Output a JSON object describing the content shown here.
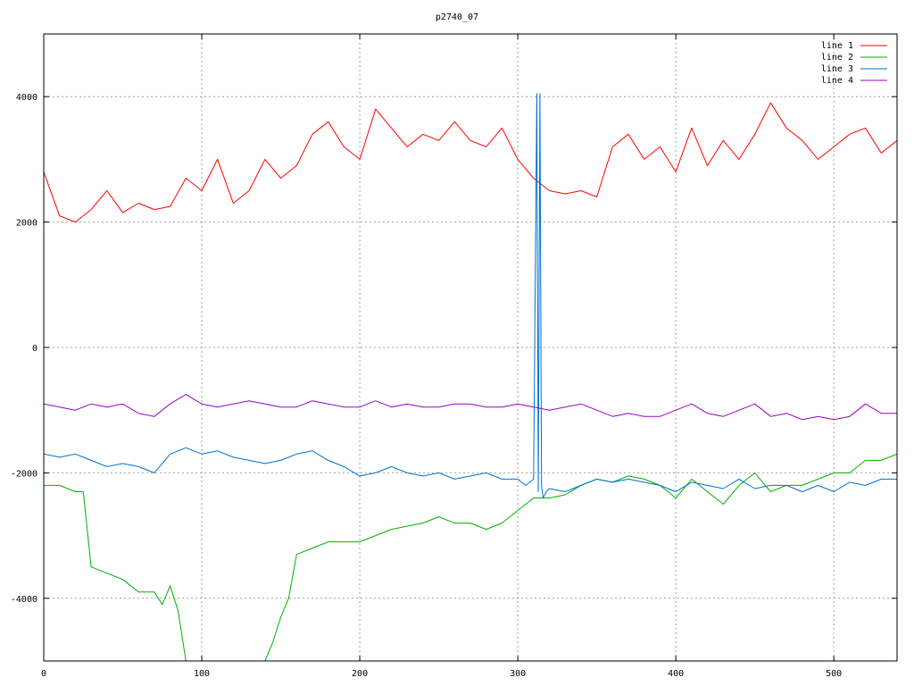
{
  "chart_data": {
    "type": "line",
    "title": "p2740_07",
    "xlabel": "",
    "ylabel": "",
    "xlim": [
      0,
      540
    ],
    "ylim": [
      -5000,
      5000
    ],
    "xticks": [
      0,
      100,
      200,
      300,
      400,
      500
    ],
    "yticks": [
      -4000,
      -2000,
      0,
      2000,
      4000
    ],
    "grid": true,
    "legend_position": "top-right",
    "series": [
      {
        "name": "line 1",
        "color": "#ff0000",
        "x": [
          0,
          10,
          20,
          30,
          40,
          50,
          60,
          70,
          80,
          90,
          100,
          110,
          120,
          130,
          140,
          150,
          160,
          170,
          180,
          190,
          200,
          210,
          220,
          230,
          240,
          250,
          260,
          270,
          280,
          290,
          300,
          310,
          320,
          330,
          340,
          350,
          360,
          370,
          380,
          390,
          400,
          410,
          420,
          430,
          440,
          450,
          460,
          470,
          480,
          490,
          500,
          510,
          520,
          530,
          540
        ],
        "y": [
          2800,
          2100,
          2000,
          2200,
          2500,
          2150,
          2300,
          2200,
          2250,
          2700,
          2500,
          3000,
          2300,
          2500,
          3000,
          2700,
          2900,
          3400,
          3600,
          3200,
          3000,
          3800,
          3500,
          3200,
          3400,
          3300,
          3600,
          3300,
          3200,
          3500,
          3000,
          2700,
          2500,
          2450,
          2500,
          2400,
          3200,
          3400,
          3000,
          3200,
          2800,
          3500,
          2900,
          3300,
          3000,
          3400,
          3900,
          3500,
          3300,
          3000,
          3200,
          3400,
          3500,
          3100,
          3300
        ]
      },
      {
        "name": "line 2",
        "color": "#00b000",
        "x": [
          0,
          10,
          20,
          25,
          30,
          40,
          50,
          60,
          70,
          75,
          80,
          85,
          90,
          95,
          140,
          145,
          150,
          155,
          160,
          170,
          180,
          190,
          200,
          210,
          220,
          230,
          240,
          250,
          260,
          270,
          280,
          290,
          300,
          310,
          320,
          330,
          340,
          350,
          360,
          370,
          380,
          390,
          400,
          410,
          420,
          430,
          440,
          450,
          460,
          470,
          480,
          490,
          500,
          510,
          520,
          530,
          540
        ],
        "y": [
          -2200,
          -2200,
          -2300,
          -2300,
          -3500,
          -3600,
          -3700,
          -3900,
          -3900,
          -4100,
          -3800,
          -4200,
          -5000,
          -5000,
          -5000,
          -4700,
          -4300,
          -4000,
          -3300,
          -3200,
          -3100,
          -3100,
          -3100,
          -3000,
          -2900,
          -2850,
          -2800,
          -2700,
          -2800,
          -2800,
          -2900,
          -2800,
          -2600,
          -2400,
          -2400,
          -2350,
          -2200,
          -2100,
          -2150,
          -2050,
          -2100,
          -2200,
          -2400,
          -2100,
          -2300,
          -2500,
          -2200,
          -2000,
          -2300,
          -2200,
          -2200,
          -2100,
          -2000,
          -2000,
          -1800,
          -1800,
          -1700
        ]
      },
      {
        "name": "line 3",
        "color": "#0070d0",
        "x": [
          0,
          10,
          20,
          30,
          40,
          50,
          60,
          70,
          80,
          90,
          100,
          110,
          120,
          130,
          140,
          150,
          160,
          170,
          180,
          190,
          200,
          210,
          220,
          230,
          240,
          250,
          260,
          270,
          280,
          290,
          300,
          305,
          310,
          312,
          313,
          314,
          315,
          316,
          318,
          320,
          330,
          340,
          350,
          360,
          370,
          380,
          390,
          400,
          410,
          420,
          430,
          440,
          450,
          460,
          470,
          480,
          490,
          500,
          510,
          520,
          530,
          540
        ],
        "y": [
          -1700,
          -1750,
          -1700,
          -1800,
          -1900,
          -1850,
          -1900,
          -2000,
          -1700,
          -1600,
          -1700,
          -1650,
          -1750,
          -1800,
          -1850,
          -1800,
          -1700,
          -1650,
          -1800,
          -1900,
          -2050,
          -2000,
          -1900,
          -2000,
          -2050,
          -2000,
          -2100,
          -2050,
          -2000,
          -2100,
          -2100,
          -2200,
          -2100,
          4050,
          -2300,
          4050,
          -2200,
          -2400,
          -2300,
          -2250,
          -2300,
          -2200,
          -2100,
          -2150,
          -2100,
          -2150,
          -2200,
          -2300,
          -2150,
          -2200,
          -2250,
          -2100,
          -2250,
          -2200,
          -2200,
          -2300,
          -2200,
          -2300,
          -2150,
          -2200,
          -2100,
          -2100
        ]
      },
      {
        "name": "line 4",
        "color": "#9900cc",
        "x": [
          0,
          10,
          20,
          30,
          40,
          50,
          60,
          70,
          80,
          90,
          100,
          110,
          120,
          130,
          140,
          150,
          160,
          170,
          180,
          190,
          200,
          210,
          220,
          230,
          240,
          250,
          260,
          270,
          280,
          290,
          300,
          310,
          320,
          330,
          340,
          350,
          360,
          370,
          380,
          390,
          400,
          410,
          420,
          430,
          440,
          450,
          460,
          470,
          480,
          490,
          500,
          510,
          520,
          530,
          540
        ],
        "y": [
          -900,
          -950,
          -1000,
          -900,
          -950,
          -900,
          -1050,
          -1100,
          -900,
          -750,
          -900,
          -950,
          -900,
          -850,
          -900,
          -950,
          -950,
          -850,
          -900,
          -950,
          -950,
          -850,
          -950,
          -900,
          -950,
          -950,
          -900,
          -900,
          -950,
          -950,
          -900,
          -950,
          -1000,
          -950,
          -900,
          -1000,
          -1100,
          -1050,
          -1100,
          -1100,
          -1000,
          -900,
          -1050,
          -1100,
          -1000,
          -900,
          -1100,
          -1050,
          -1150,
          -1100,
          -1150,
          -1100,
          -900,
          -1050,
          -1050
        ]
      }
    ]
  }
}
